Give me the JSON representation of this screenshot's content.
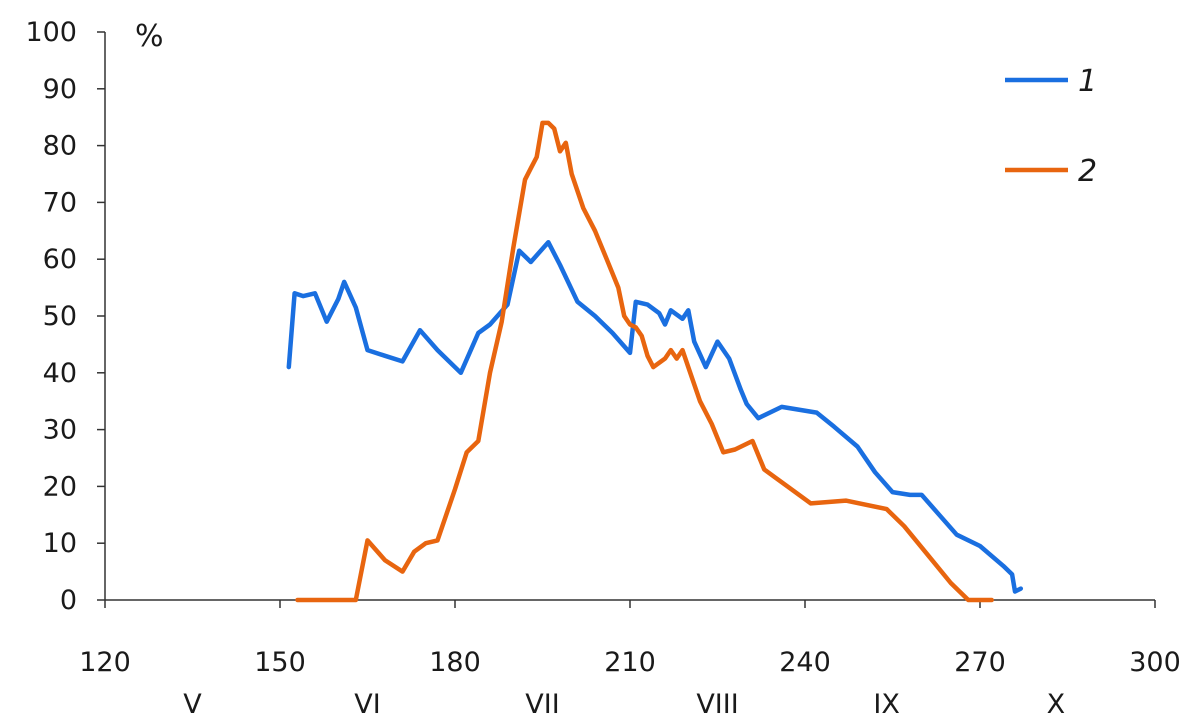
{
  "chart_data": {
    "type": "line",
    "xlim": [
      120,
      300
    ],
    "ylim": [
      0,
      100
    ],
    "x_ticks": [
      120,
      150,
      180,
      210,
      240,
      270,
      300
    ],
    "y_ticks": [
      0,
      10,
      20,
      30,
      40,
      50,
      60,
      70,
      80,
      90,
      100
    ],
    "ylabel": "%",
    "grid": false,
    "legend_position": "top-right",
    "month_labels": [
      {
        "label": "V",
        "x": 135
      },
      {
        "label": "VI",
        "x": 165
      },
      {
        "label": "VII",
        "x": 195
      },
      {
        "label": "VIII",
        "x": 225
      },
      {
        "label": "IX",
        "x": 254
      },
      {
        "label": "X",
        "x": 283
      }
    ],
    "series": [
      {
        "name": "1",
        "color": "#1a6fe0",
        "points": [
          [
            151.5,
            41
          ],
          [
            152.5,
            54
          ],
          [
            154,
            53.5
          ],
          [
            156,
            54
          ],
          [
            158,
            49
          ],
          [
            160,
            53
          ],
          [
            161,
            56
          ],
          [
            163,
            51.5
          ],
          [
            165,
            44
          ],
          [
            168,
            43
          ],
          [
            171,
            42
          ],
          [
            174,
            47.5
          ],
          [
            177,
            44
          ],
          [
            181,
            40
          ],
          [
            184,
            47
          ],
          [
            186,
            48.5
          ],
          [
            189,
            52
          ],
          [
            191,
            61.5
          ],
          [
            193,
            59.5
          ],
          [
            196,
            63
          ],
          [
            198,
            59
          ],
          [
            201,
            52.5
          ],
          [
            204,
            50
          ],
          [
            207,
            47
          ],
          [
            210,
            43.5
          ],
          [
            211,
            52.5
          ],
          [
            213,
            52
          ],
          [
            215,
            50.5
          ],
          [
            216,
            48.5
          ],
          [
            217,
            51
          ],
          [
            219,
            49.5
          ],
          [
            220,
            51
          ],
          [
            221,
            45.5
          ],
          [
            223,
            41
          ],
          [
            225,
            45.5
          ],
          [
            227,
            42.5
          ],
          [
            229,
            37
          ],
          [
            230,
            34.5
          ],
          [
            232,
            32
          ],
          [
            236,
            34
          ],
          [
            242,
            33
          ],
          [
            245,
            30.5
          ],
          [
            249,
            27
          ],
          [
            252,
            22.5
          ],
          [
            255,
            19
          ],
          [
            258,
            18.5
          ],
          [
            260,
            18.5
          ],
          [
            263,
            15
          ],
          [
            266,
            11.5
          ],
          [
            270,
            9.5
          ],
          [
            274,
            6
          ],
          [
            275.5,
            4.5
          ],
          [
            276,
            1.5
          ],
          [
            277,
            2
          ]
        ]
      },
      {
        "name": "2",
        "color": "#e8650f",
        "points": [
          [
            153,
            0
          ],
          [
            156,
            0
          ],
          [
            160,
            0
          ],
          [
            163,
            0
          ],
          [
            165,
            10.5
          ],
          [
            168,
            7
          ],
          [
            171,
            5
          ],
          [
            173,
            8.5
          ],
          [
            175,
            10
          ],
          [
            177,
            10.5
          ],
          [
            180,
            19.5
          ],
          [
            182,
            26
          ],
          [
            184,
            28
          ],
          [
            186,
            40
          ],
          [
            188,
            49
          ],
          [
            190,
            62
          ],
          [
            192,
            74
          ],
          [
            193,
            76
          ],
          [
            194,
            78
          ],
          [
            195,
            84
          ],
          [
            196,
            84
          ],
          [
            197,
            83
          ],
          [
            198,
            79
          ],
          [
            199,
            80.5
          ],
          [
            200,
            75
          ],
          [
            202,
            69
          ],
          [
            204,
            65
          ],
          [
            206,
            60
          ],
          [
            208,
            55
          ],
          [
            209,
            50
          ],
          [
            210,
            48.5
          ],
          [
            211,
            48
          ],
          [
            212,
            46.5
          ],
          [
            213,
            43
          ],
          [
            214,
            41
          ],
          [
            216,
            42.5
          ],
          [
            217,
            44
          ],
          [
            218,
            42.5
          ],
          [
            219,
            44
          ],
          [
            220,
            41
          ],
          [
            222,
            35
          ],
          [
            224,
            31
          ],
          [
            226,
            26
          ],
          [
            228,
            26.5
          ],
          [
            231,
            28
          ],
          [
            233,
            23
          ],
          [
            235,
            21.5
          ],
          [
            237,
            20
          ],
          [
            241,
            17
          ],
          [
            247,
            17.5
          ],
          [
            254,
            16
          ],
          [
            257,
            13
          ],
          [
            261,
            8
          ],
          [
            265,
            3
          ],
          [
            268,
            0
          ],
          [
            272,
            0
          ]
        ]
      }
    ]
  }
}
